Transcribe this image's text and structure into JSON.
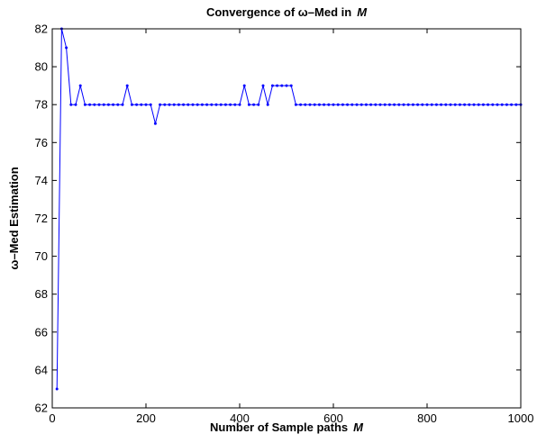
{
  "chart_data": {
    "type": "line",
    "title": "Convergence of ω–Med in",
    "title_italic": "M",
    "xlabel": "Number of Sample paths",
    "xlabel_italic": "M",
    "ylabel": "ω–Med Estimation",
    "xlim": [
      0,
      1000
    ],
    "ylim": [
      62,
      82
    ],
    "xticks": [
      0,
      200,
      400,
      600,
      800,
      1000
    ],
    "yticks": [
      62,
      64,
      66,
      68,
      70,
      72,
      74,
      76,
      78,
      80,
      82
    ],
    "grid": false,
    "line_color": "#0000ff",
    "marker": "dot",
    "series": [
      {
        "x": [
          10,
          20,
          30,
          40,
          50,
          60,
          70,
          80,
          90,
          100,
          110,
          120,
          130,
          140,
          150,
          160,
          170,
          180,
          190,
          200,
          210,
          220,
          230,
          240,
          250,
          260,
          270,
          280,
          290,
          300,
          310,
          320,
          330,
          340,
          350,
          360,
          370,
          380,
          390,
          400,
          410,
          420,
          430,
          440,
          450,
          460,
          470,
          480,
          490,
          500,
          510,
          520,
          530,
          540,
          550,
          560,
          570,
          580,
          590,
          600,
          610,
          620,
          630,
          640,
          650,
          660,
          670,
          680,
          690,
          700,
          710,
          720,
          730,
          740,
          750,
          760,
          770,
          780,
          790,
          800,
          810,
          820,
          830,
          840,
          850,
          860,
          870,
          880,
          890,
          900,
          910,
          920,
          930,
          940,
          950,
          960,
          970,
          980,
          990,
          1000
        ],
        "values": [
          63,
          82,
          81,
          78,
          78,
          79,
          78,
          78,
          78,
          78,
          78,
          78,
          78,
          78,
          78,
          79,
          78,
          78,
          78,
          78,
          78,
          77,
          78,
          78,
          78,
          78,
          78,
          78,
          78,
          78,
          78,
          78,
          78,
          78,
          78,
          78,
          78,
          78,
          78,
          78,
          79,
          78,
          78,
          78,
          79,
          78,
          79,
          79,
          79,
          79,
          79,
          78,
          78,
          78,
          78,
          78,
          78,
          78,
          78,
          78,
          78,
          78,
          78,
          78,
          78,
          78,
          78,
          78,
          78,
          78,
          78,
          78,
          78,
          78,
          78,
          78,
          78,
          78,
          78,
          78,
          78,
          78,
          78,
          78,
          78,
          78,
          78,
          78,
          78,
          78,
          78,
          78,
          78,
          78,
          78,
          78,
          78,
          78,
          78,
          78
        ]
      }
    ]
  }
}
